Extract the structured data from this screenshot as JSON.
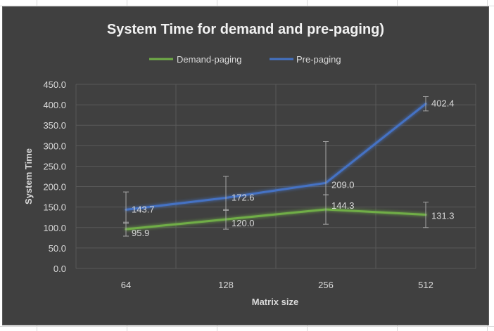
{
  "chart_data": {
    "type": "line",
    "title": "System Time for demand and pre-paging)",
    "xlabel": "Matrix size",
    "ylabel": "System Time",
    "categories": [
      "64",
      "128",
      "256",
      "512"
    ],
    "ylim": [
      0,
      450
    ],
    "yticks": [
      "0.0",
      "50.0",
      "100.0",
      "150.0",
      "200.0",
      "250.0",
      "300.0",
      "350.0",
      "400.0",
      "450.0"
    ],
    "grid": true,
    "legend": "top",
    "series": [
      {
        "name": "Demand-paging",
        "values": [
          95.9,
          120.0,
          144.3,
          131.3
        ],
        "labels": [
          "95.9",
          "120.0",
          "144.3",
          "131.3"
        ],
        "error_low": [
          79,
          96,
          108,
          100
        ],
        "error_high": [
          113,
          144,
          180,
          162
        ],
        "color": "#70ad47"
      },
      {
        "name": "Pre-paging",
        "values": [
          143.7,
          172.6,
          209.0,
          402.4
        ],
        "labels": [
          "143.7",
          "172.6",
          "209.0",
          "402.4"
        ],
        "error_low": [
          110,
          142,
          180,
          385
        ],
        "error_high": [
          187,
          225,
          310,
          420
        ],
        "color": "#4472c4"
      }
    ],
    "colors": {
      "background": "#404040",
      "gridline": "#595959",
      "text": "#d9d9d9",
      "title": "#f2f2f2",
      "errorbar": "#a6a6a6"
    }
  }
}
